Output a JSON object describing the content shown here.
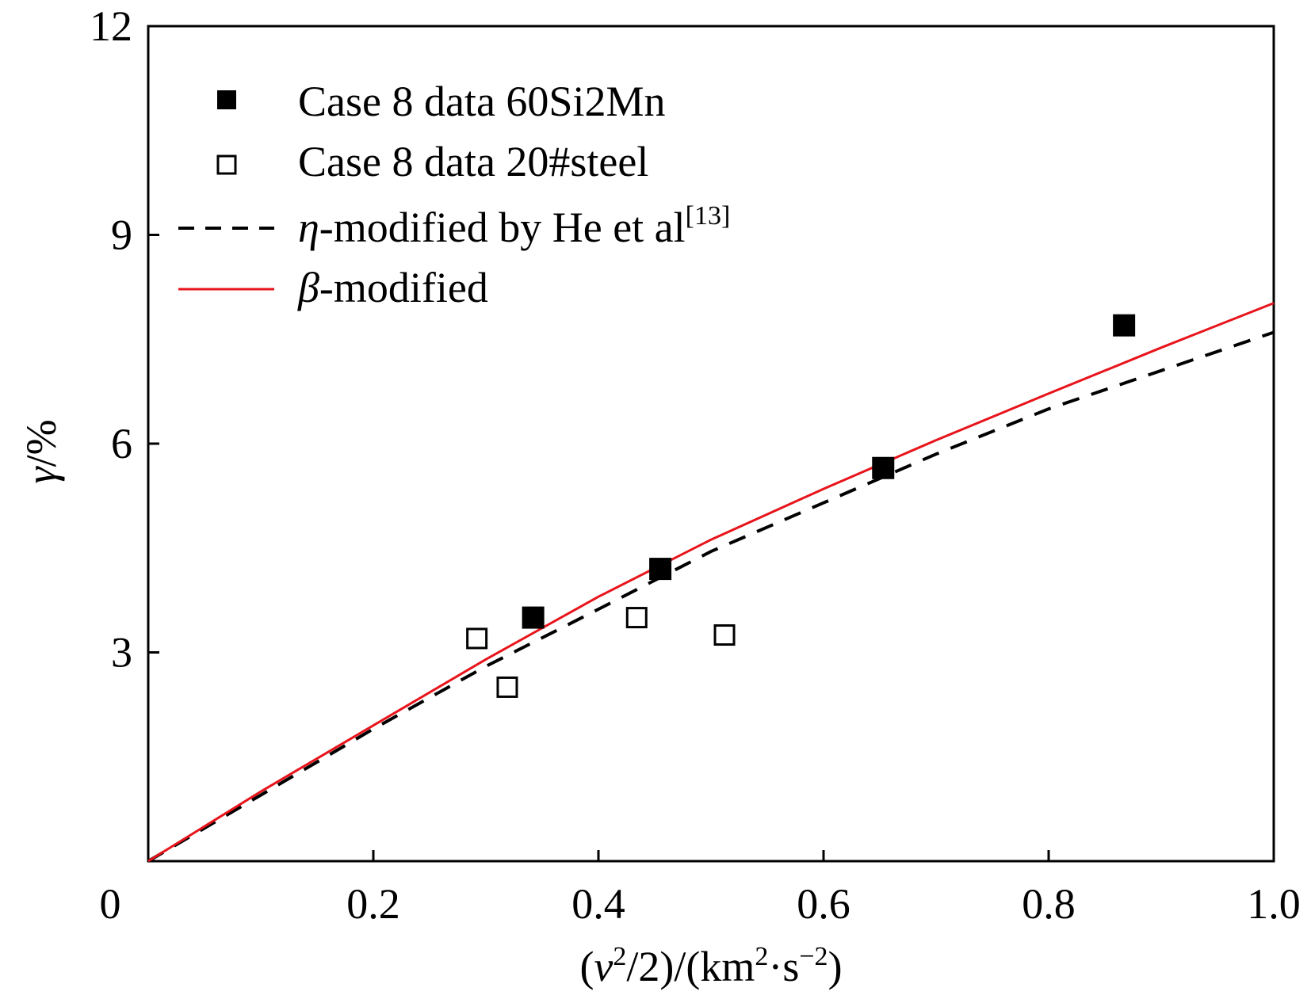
{
  "chart_data": {
    "type": "scatter",
    "xlabel": {
      "open": "(",
      "var": "v",
      "sup": "2",
      "rest": "/2)/(km",
      "sup2": "2",
      "mid": "·s",
      "sup3": "−2",
      "close": ")"
    },
    "ylabel": {
      "var": "γ",
      "rest": "/%"
    },
    "xlim": [
      0,
      1.0
    ],
    "ylim": [
      0,
      12
    ],
    "x_ticks": [
      0,
      0.2,
      0.4,
      0.6,
      0.8,
      1.0
    ],
    "x_tick_labels": [
      "0",
      "0.2",
      "0.4",
      "0.6",
      "0.8",
      "1.0"
    ],
    "y_ticks": [
      3,
      6,
      9,
      12
    ],
    "y_tick_labels": [
      "3",
      "6",
      "9",
      "12"
    ],
    "grid": false,
    "legend_position": "top-left",
    "series": [
      {
        "name": "Case 8 data 60Si2Mn",
        "kind": "scatter",
        "marker": "filled-square",
        "color": "#000000",
        "points": [
          [
            0.342,
            3.5
          ],
          [
            0.455,
            4.2
          ],
          [
            0.653,
            5.65
          ],
          [
            0.867,
            7.7
          ]
        ]
      },
      {
        "name": "Case 8 data 20#steel",
        "kind": "scatter",
        "marker": "open-square",
        "color": "#000000",
        "points": [
          [
            0.292,
            3.2
          ],
          [
            0.319,
            2.5
          ],
          [
            0.434,
            3.5
          ],
          [
            0.512,
            3.25
          ]
        ]
      },
      {
        "name": "η-modified by He et al[13]",
        "legend_var": "η",
        "legend_rest": "-modified by He et al",
        "legend_sup": "[13]",
        "kind": "line",
        "style": "dashed",
        "color": "#000000",
        "points": [
          [
            0,
            0
          ],
          [
            0.1,
            0.95
          ],
          [
            0.2,
            1.9
          ],
          [
            0.3,
            2.8
          ],
          [
            0.4,
            3.62
          ],
          [
            0.5,
            4.45
          ],
          [
            0.6,
            5.15
          ],
          [
            0.7,
            5.85
          ],
          [
            0.8,
            6.5
          ],
          [
            0.9,
            7.05
          ],
          [
            1.0,
            7.6
          ]
        ]
      },
      {
        "name": "β-modified",
        "legend_var": "β",
        "legend_rest": "-modified",
        "kind": "line",
        "style": "solid",
        "color": "#e8141b",
        "points": [
          [
            0,
            0
          ],
          [
            0.1,
            1.0
          ],
          [
            0.2,
            1.95
          ],
          [
            0.3,
            2.9
          ],
          [
            0.4,
            3.8
          ],
          [
            0.5,
            4.62
          ],
          [
            0.6,
            5.35
          ],
          [
            0.7,
            6.05
          ],
          [
            0.8,
            6.72
          ],
          [
            0.9,
            7.38
          ],
          [
            1.0,
            8.02
          ]
        ]
      }
    ]
  }
}
